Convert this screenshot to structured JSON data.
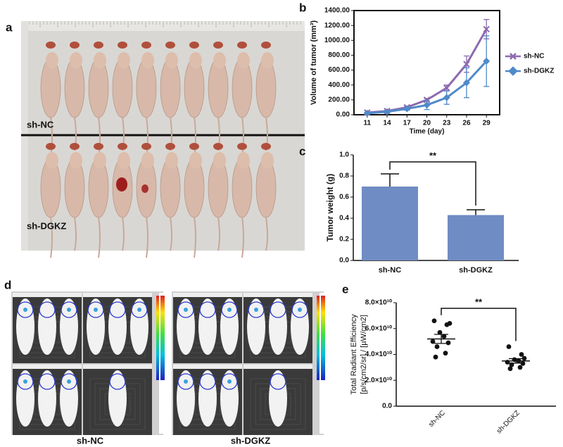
{
  "panel_labels": [
    "a",
    "b",
    "c",
    "d",
    "e"
  ],
  "photos": [
    {
      "labels": [
        "sh-NC",
        "sh-DGKZ"
      ]
    },
    {
      "labels": [
        "sh-NC",
        "sh-DGKZ"
      ]
    }
  ],
  "chart_data": [
    {
      "type": "line",
      "ylabel": "Volume of tumor (mm³)",
      "xlabel": "Time (day)",
      "x": [
        11,
        14,
        17,
        20,
        23,
        26,
        29
      ],
      "xlim": [
        9,
        31
      ],
      "xticks": [
        11,
        14,
        17,
        20,
        23,
        26,
        29
      ],
      "ylim": [
        0,
        1400
      ],
      "yticks": [
        {
          "value": 0,
          "label": "0.00"
        },
        {
          "value": 200,
          "label": "200.00"
        },
        {
          "value": 400,
          "label": "400.00"
        },
        {
          "value": 600,
          "label": "600.00"
        },
        {
          "value": 800,
          "label": "800.00"
        },
        {
          "value": 1000,
          "label": "1000.00"
        },
        {
          "value": 1200,
          "label": "1200.00"
        },
        {
          "value": 1400,
          "label": "1400.00"
        }
      ],
      "series": [
        {
          "name": "sh-NC",
          "color": "#8d6aaf",
          "marker": "x",
          "values": [
            30,
            50,
            100,
            200,
            360,
            680,
            1150
          ],
          "errors": [
            5,
            10,
            15,
            20,
            40,
            110,
            130
          ]
        },
        {
          "name": "sh-DGKZ",
          "color": "#4f8ac9",
          "marker": "diamond",
          "values": [
            20,
            40,
            80,
            130,
            230,
            430,
            720
          ],
          "errors": [
            5,
            10,
            20,
            60,
            90,
            200,
            340
          ]
        }
      ]
    },
    {
      "type": "bar",
      "ylabel": "Tumor weight (g)",
      "categories": [
        "sh-NC",
        "sh-DGKZ"
      ],
      "values": [
        0.7,
        0.43
      ],
      "errors": [
        0.12,
        0.05
      ],
      "color": "#6f8cc4",
      "ylim": [
        0,
        1
      ],
      "yticks": [
        {
          "value": 0,
          "label": "0.0"
        },
        0.2,
        0.4,
        0.6,
        0.8,
        {
          "value": 1,
          "label": "1.0"
        }
      ],
      "annotation": "**"
    },
    {
      "type": "dotplot",
      "ylabel": [
        "Total Radiant Efficiency",
        "[p/s/cm2/sr] / [µW/cm2]"
      ],
      "categories": [
        "sh-NC",
        "sh-DGKZ"
      ],
      "points": [
        [
          66000000000,
          63000000000,
          64000000000,
          57000000000,
          54000000000,
          50000000000,
          49000000000,
          46000000000,
          41000000000,
          38000000000
        ],
        [
          46000000000,
          40000000000,
          37000000000,
          36000000000,
          35000000000,
          34000000000,
          33000000000,
          32000000000,
          30000000000,
          29000000000
        ]
      ],
      "means": [
        52000000000,
        35000000000
      ],
      "sems": [
        3500000000,
        1700000000
      ],
      "ylim": [
        0,
        80000000000
      ],
      "yticks": [
        {
          "value": 0,
          "label": "0.0"
        },
        {
          "value": 20000000000,
          "label": "2.0×10¹⁰"
        },
        {
          "value": 40000000000,
          "label": "4.0×10¹⁰"
        },
        {
          "value": 60000000000,
          "label": "6.0×10¹⁰"
        },
        {
          "value": 80000000000,
          "label": "8.0×10¹⁰"
        }
      ],
      "annotation": "**",
      "color": "#111111"
    }
  ]
}
